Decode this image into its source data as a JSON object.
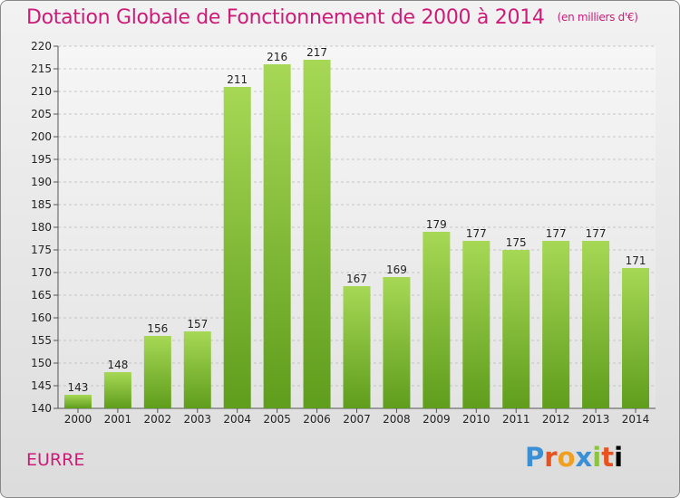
{
  "header": {
    "title": "Dotation Globale de Fonctionnement de 2000 à 2014",
    "subtitle": "(en milliers d'€)"
  },
  "footer": {
    "commune": "EURRE",
    "logo": "Proxiti"
  },
  "colors": {
    "title": "#cc1c78",
    "bar_light": "#a6d855",
    "bar_dark": "#5f9d1c"
  },
  "chart_data": {
    "type": "bar",
    "title": "Dotation Globale de Fonctionnement de 2000 à 2014",
    "subtitle": "(en milliers d'€)",
    "categories": [
      "2000",
      "2001",
      "2002",
      "2003",
      "2004",
      "2005",
      "2006",
      "2007",
      "2008",
      "2009",
      "2010",
      "2011",
      "2012",
      "2013",
      "2014"
    ],
    "values": [
      143,
      148,
      156,
      157,
      211,
      216,
      217,
      167,
      169,
      179,
      177,
      175,
      177,
      177,
      171
    ],
    "ylim": [
      140,
      220
    ],
    "yticks": [
      140,
      145,
      150,
      155,
      160,
      165,
      170,
      175,
      180,
      185,
      190,
      195,
      200,
      205,
      210,
      215,
      220
    ],
    "grid": true,
    "legend": "none",
    "xlabel": "",
    "ylabel": ""
  }
}
